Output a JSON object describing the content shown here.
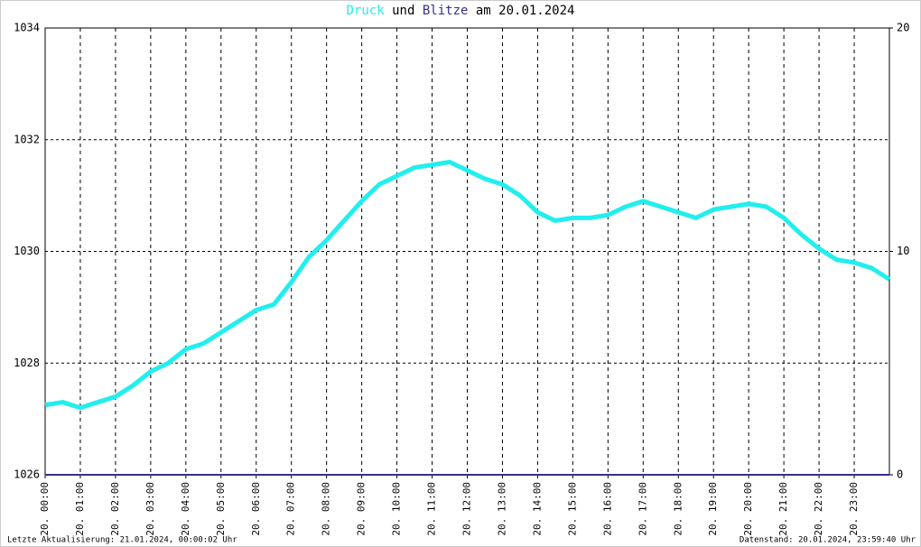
{
  "chart_data": {
    "type": "line",
    "title_words": [
      "und",
      "am 20.01.2024"
    ],
    "footer_left": "Letzte Aktualisierung: 21.01.2024, 00:00:02 Uhr",
    "footer_right": "Datenstand: 20.01.2024, 23:59:40 Uhr",
    "x": [
      0,
      0.5,
      1,
      1.5,
      2,
      2.5,
      3,
      3.5,
      4,
      4.5,
      5,
      5.5,
      6,
      6.5,
      7,
      7.5,
      8,
      8.5,
      9,
      9.5,
      10,
      10.5,
      11,
      11.5,
      12,
      12.5,
      13,
      13.5,
      14,
      14.5,
      15,
      15.5,
      16,
      16.5,
      17,
      17.5,
      18,
      18.5,
      19,
      19.5,
      20,
      20.5,
      21,
      21.5,
      22,
      22.5,
      23,
      23.5,
      24
    ],
    "series": [
      {
        "name": "Druck",
        "color": "#22eeee",
        "values": [
          1027.25,
          1027.3,
          1027.2,
          1027.3,
          1027.4,
          1027.6,
          1027.85,
          1028.0,
          1028.25,
          1028.35,
          1028.55,
          1028.75,
          1028.95,
          1029.05,
          1029.45,
          1029.9,
          1030.2,
          1030.55,
          1030.9,
          1031.2,
          1031.35,
          1031.5,
          1031.55,
          1031.6,
          1031.45,
          1031.3,
          1031.2,
          1031.0,
          1030.7,
          1030.55,
          1030.6,
          1030.6,
          1030.65,
          1030.8,
          1030.9,
          1030.8,
          1030.7,
          1030.6,
          1030.75,
          1030.8,
          1030.85,
          1030.8,
          1030.6,
          1030.3,
          1030.05,
          1029.85,
          1029.8,
          1029.7,
          1029.5
        ]
      },
      {
        "name": "Blitze",
        "color": "#333388",
        "axis": "y2",
        "values": [
          0,
          0,
          0,
          0,
          0,
          0,
          0,
          0,
          0,
          0,
          0,
          0,
          0,
          0,
          0,
          0,
          0,
          0,
          0,
          0,
          0,
          0,
          0,
          0,
          0,
          0,
          0,
          0,
          0,
          0,
          0,
          0,
          0,
          0,
          0,
          0,
          0,
          0,
          0,
          0,
          0,
          0,
          0,
          0,
          0,
          0,
          0,
          0,
          0
        ]
      }
    ],
    "xlim": [
      0,
      24
    ],
    "xticks": [
      {
        "value": 0,
        "label": "20. 00:00"
      },
      {
        "value": 1,
        "label": "20. 01:00"
      },
      {
        "value": 2,
        "label": "20. 02:00"
      },
      {
        "value": 3,
        "label": "20. 03:00"
      },
      {
        "value": 4,
        "label": "20. 04:00"
      },
      {
        "value": 5,
        "label": "20. 05:00"
      },
      {
        "value": 6,
        "label": "20. 06:00"
      },
      {
        "value": 7,
        "label": "20. 07:00"
      },
      {
        "value": 8,
        "label": "20. 08:00"
      },
      {
        "value": 9,
        "label": "20. 09:00"
      },
      {
        "value": 10,
        "label": "20. 10:00"
      },
      {
        "value": 11,
        "label": "20. 11:00"
      },
      {
        "value": 12,
        "label": "20. 12:00"
      },
      {
        "value": 13,
        "label": "20. 13:00"
      },
      {
        "value": 14,
        "label": "20. 14:00"
      },
      {
        "value": 15,
        "label": "20. 15:00"
      },
      {
        "value": 16,
        "label": "20. 16:00"
      },
      {
        "value": 17,
        "label": "20. 17:00"
      },
      {
        "value": 18,
        "label": "20. 18:00"
      },
      {
        "value": 19,
        "label": "20. 19:00"
      },
      {
        "value": 20,
        "label": "20. 20:00"
      },
      {
        "value": 21,
        "label": "20. 21:00"
      },
      {
        "value": 22,
        "label": "20. 22:00"
      },
      {
        "value": 23,
        "label": "20. 23:00"
      }
    ],
    "ylim": [
      1026,
      1034
    ],
    "yticks": [
      1026,
      1028,
      1030,
      1032,
      1034
    ],
    "y2lim": [
      0,
      20
    ],
    "y2ticks": [
      0,
      10,
      20
    ],
    "grid": true
  }
}
